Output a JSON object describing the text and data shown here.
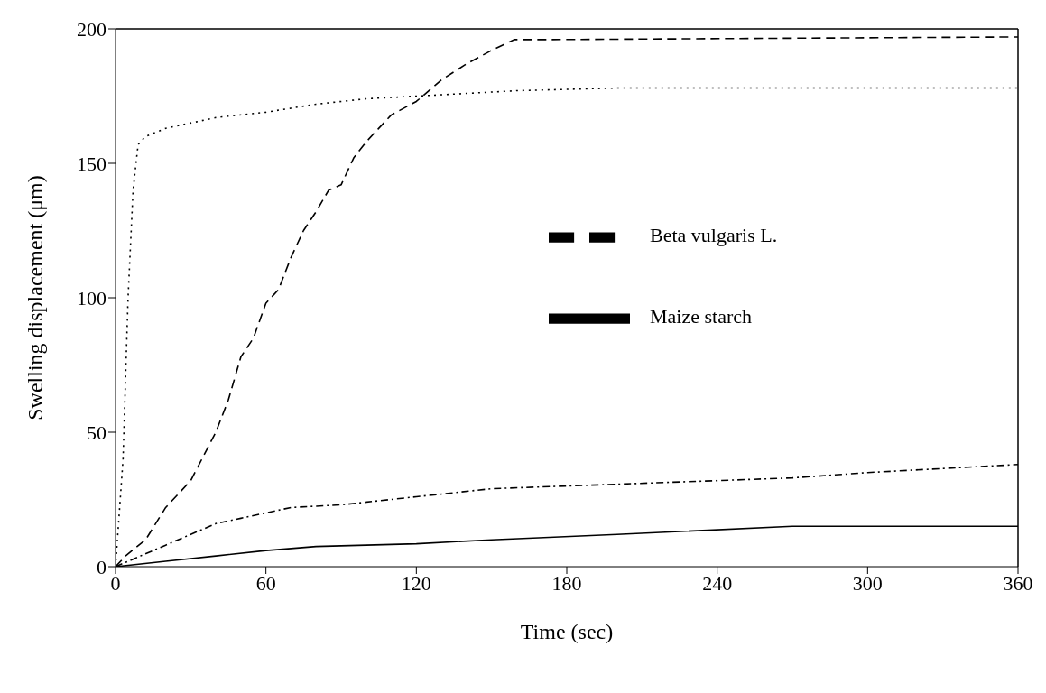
{
  "chart_data": {
    "type": "line",
    "xlabel": "Time (sec)",
    "ylabel": "Swelling displacement (μm)",
    "xlim": [
      0,
      360
    ],
    "xticks": [
      0,
      60,
      120,
      180,
      240,
      300,
      360
    ],
    "ylim": [
      0,
      200
    ],
    "yticks": [
      0,
      50,
      100,
      150,
      200
    ],
    "grid": false,
    "legend": "right",
    "marker": "none",
    "series": [
      {
        "name": "Beta vulgaris L.",
        "color": "#000000",
        "line_style": "dashed",
        "x": [
          0,
          4,
          12,
          20,
          30,
          40,
          45,
          50,
          55,
          60,
          65,
          70,
          75,
          80,
          85,
          90,
          95,
          100,
          110,
          120,
          130,
          140,
          150,
          159,
          170,
          360
        ],
        "values": [
          0,
          4,
          10,
          22,
          32,
          50,
          62,
          78,
          85,
          98,
          103,
          115,
          125,
          132,
          140,
          142,
          152,
          158,
          168,
          173,
          181,
          187,
          192,
          196,
          196,
          197
        ]
      },
      {
        "color": "#000000",
        "line_style": "dotted",
        "x": [
          0,
          3,
          5,
          7,
          9,
          12,
          20,
          40,
          60,
          80,
          100,
          120,
          160,
          200,
          360
        ],
        "values": [
          0,
          40,
          100,
          140,
          157,
          160,
          163,
          167,
          169,
          172,
          174,
          175,
          177,
          178,
          178
        ]
      },
      {
        "color": "#000000",
        "line_style": "dashdot",
        "x": [
          0,
          10,
          20,
          30,
          40,
          50,
          60,
          70,
          90,
          120,
          150,
          180,
          240,
          270,
          300,
          360
        ],
        "values": [
          0,
          4,
          8,
          12,
          16,
          18,
          20,
          22,
          23,
          26,
          29,
          30,
          32,
          33,
          35,
          38
        ]
      },
      {
        "name": "Maize starch",
        "color": "#000000",
        "line_style": "solid",
        "x": [
          0,
          20,
          40,
          60,
          80,
          120,
          150,
          200,
          270,
          300,
          360
        ],
        "values": [
          0,
          2,
          4,
          6,
          7.5,
          8.5,
          10,
          12,
          15,
          15,
          15
        ]
      }
    ]
  }
}
